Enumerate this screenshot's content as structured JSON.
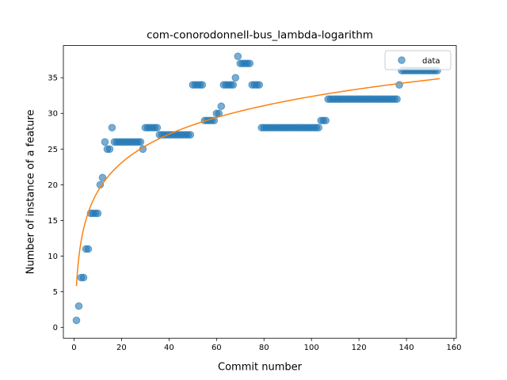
{
  "chart_data": {
    "type": "scatter",
    "title": "com-conorodonnell-bus_lambda-logarithm",
    "xlabel": "Commit number",
    "ylabel": "Number of instance of a feature",
    "xlim": [
      -4.5,
      161
    ],
    "ylim": [
      -1.5,
      39.5
    ],
    "xticks": [
      0,
      20,
      40,
      60,
      80,
      100,
      120,
      140,
      160
    ],
    "yticks": [
      0,
      5,
      10,
      15,
      20,
      25,
      30,
      35
    ],
    "legend": {
      "position": "top-right",
      "entries": [
        "data"
      ]
    },
    "grid": false,
    "colors": {
      "data": "#1f77b4",
      "fit": "#ff7f0e"
    },
    "series": [
      {
        "name": "data",
        "kind": "scatter",
        "runs": [
          [
            1,
            1,
            1
          ],
          [
            2,
            2,
            3
          ],
          [
            3,
            4,
            7
          ],
          [
            5,
            6,
            11
          ],
          [
            7,
            10,
            16
          ],
          [
            11,
            11,
            20
          ],
          [
            12,
            12,
            21
          ],
          [
            13,
            13,
            26
          ],
          [
            14,
            15,
            25
          ],
          [
            16,
            16,
            28
          ],
          [
            17,
            28,
            26
          ],
          [
            29,
            29,
            25
          ],
          [
            30,
            35,
            28
          ],
          [
            36,
            49,
            27
          ],
          [
            50,
            54,
            34
          ],
          [
            55,
            59,
            29
          ],
          [
            60,
            61,
            30
          ],
          [
            62,
            62,
            31
          ],
          [
            63,
            67,
            34
          ],
          [
            68,
            68,
            35
          ],
          [
            69,
            69,
            38
          ],
          [
            70,
            74,
            37
          ],
          [
            75,
            78,
            34
          ],
          [
            79,
            103,
            28
          ],
          [
            104,
            106,
            29
          ],
          [
            107,
            136,
            32
          ],
          [
            137,
            137,
            34
          ],
          [
            138,
            153,
            36
          ]
        ]
      },
      {
        "name": "",
        "kind": "line",
        "model": "logarithmic",
        "coefficients": {
          "a": 5.8,
          "b": 5.77
        },
        "x_range": [
          1,
          154
        ]
      }
    ]
  }
}
